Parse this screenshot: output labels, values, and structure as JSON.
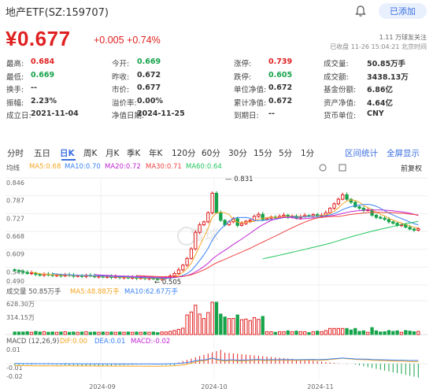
{
  "header": {
    "title": "地产ETF(SZ:159707)",
    "add_label": "已添加",
    "price": "¥0.677",
    "change": "+0.005 +0.74%",
    "fans": "1.11 万球友关注",
    "status": "已收盘 11-26 15:04:21 北京时间"
  },
  "quote": [
    [
      {
        "label": "最高:",
        "value": "0.684",
        "color": "red"
      },
      {
        "label": "今开:",
        "value": "0.669",
        "color": "green"
      },
      {
        "label": "涨停:",
        "value": "0.739",
        "color": "red"
      },
      {
        "label": "成交量:",
        "value": "50.85万手",
        "color": "dark"
      }
    ],
    [
      {
        "label": "最低:",
        "value": "0.669",
        "color": "green"
      },
      {
        "label": "昨收:",
        "value": "0.672",
        "color": "dark"
      },
      {
        "label": "跌停:",
        "value": "0.605",
        "color": "green"
      },
      {
        "label": "成交额:",
        "value": "3438.13万",
        "color": "dark"
      }
    ],
    [
      {
        "label": "换手:",
        "value": "--",
        "color": "dark"
      },
      {
        "label": "市价:",
        "value": "0.677",
        "color": "dark"
      },
      {
        "label": "单位净值:",
        "value": "0.672",
        "color": "dark"
      },
      {
        "label": "基金份额:",
        "value": "6.86亿",
        "color": "dark"
      }
    ],
    [
      {
        "label": "振幅:",
        "value": "2.23%",
        "color": "dark"
      },
      {
        "label": "溢价率:",
        "value": "0.00%",
        "color": "dark"
      },
      {
        "label": "累计净值:",
        "value": "0.672",
        "color": "dark"
      },
      {
        "label": "资产净值:",
        "value": "4.64亿",
        "color": "dark"
      }
    ],
    [
      {
        "label": "成立日:",
        "value": "2021-11-04",
        "color": "dark"
      },
      {
        "label": "净值日期:",
        "value": "2024-11-25",
        "color": "dark"
      },
      {
        "label": "到期日:",
        "value": "--",
        "color": "dark"
      },
      {
        "label": "货币单位:",
        "value": "CNY",
        "color": "dark"
      }
    ]
  ],
  "tabs": [
    "分时",
    "五日",
    "日K",
    "周K",
    "月K",
    "季K",
    "年K",
    "120分",
    "60分",
    "30分",
    "15分",
    "5分",
    "1分"
  ],
  "active_tab": "日K",
  "tab_links": {
    "stats": "区间统计",
    "fullscreen": "全屏显示"
  },
  "ma_legend": {
    "label": "均线",
    "items": [
      {
        "text": "MA5:0.68",
        "color": "#f5a623"
      },
      {
        "text": "MA10:0.70",
        "color": "#3b82f6"
      },
      {
        "text": "MA20:0.72",
        "color": "#c026d3"
      },
      {
        "text": "MA30:0.71",
        "color": "#ef4444"
      },
      {
        "text": "MA60:0.64",
        "color": "#22c55e"
      }
    ],
    "adjust": "前复权"
  },
  "volume_legend": {
    "label": "成交量 50.85万手",
    "ma5": "MA5:48.88万手",
    "ma10": "MA10:62.67万手"
  },
  "macd_legend": {
    "label": "MACD (12,26,9)",
    "dif": "DIF:0.00",
    "dea": "DEA:0.01",
    "macd": "MACD:-0.02"
  },
  "price_axis": [
    "0.846",
    "0.787",
    "0.727",
    "0.668",
    "0.609",
    "0.549",
    "0.490"
  ],
  "volume_axis": [
    "628.30万",
    "314.15万"
  ],
  "macd_axis": [
    "0.01",
    "-0.01",
    "-0.02"
  ],
  "date_axis": [
    "2024-09",
    "2024-10",
    "2024-11"
  ],
  "annotations": {
    "high": "0.831",
    "low": "0.505"
  },
  "watermark": "雪球",
  "colors": {
    "up": "#e02020",
    "down": "#16a34a",
    "accent": "#3b6fe0"
  },
  "chart_data": {
    "type": "candlestick",
    "ylim": [
      0.49,
      0.846
    ],
    "ma_series": [
      "MA5",
      "MA10",
      "MA20",
      "MA30",
      "MA60"
    ],
    "price_high": 0.831,
    "price_low": 0.505,
    "close": 0.677
  }
}
